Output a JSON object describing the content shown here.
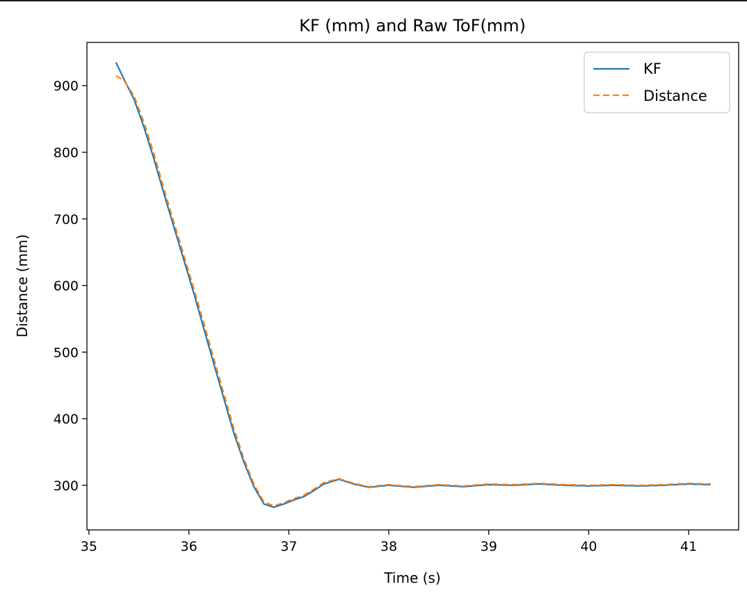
{
  "chart_data": {
    "type": "line",
    "title": "KF (mm) and Raw ToF(mm)",
    "xlabel": "Time (s)",
    "ylabel": "Distance (mm)",
    "xlim": [
      34.98,
      41.5
    ],
    "ylim": [
      233,
      965
    ],
    "xticks": [
      35,
      36,
      37,
      38,
      39,
      40,
      41
    ],
    "yticks": [
      300,
      400,
      500,
      600,
      700,
      800,
      900
    ],
    "grid": false,
    "legend_position": "top-right",
    "series": [
      {
        "name": "KF",
        "color": "#1f77b4",
        "style": "solid",
        "x": [
          35.27,
          35.35,
          35.45,
          35.55,
          35.65,
          35.75,
          35.85,
          35.95,
          36.05,
          36.15,
          36.25,
          36.35,
          36.45,
          36.55,
          36.65,
          36.75,
          36.85,
          36.95,
          37.05,
          37.15,
          37.25,
          37.35,
          37.5,
          37.65,
          37.8,
          38.0,
          38.25,
          38.5,
          38.75,
          39.0,
          39.25,
          39.5,
          39.75,
          40.0,
          40.25,
          40.5,
          40.75,
          41.0,
          41.22
        ],
        "y": [
          935,
          910,
          880,
          838,
          790,
          738,
          688,
          638,
          588,
          535,
          482,
          430,
          378,
          335,
          298,
          272,
          267,
          272,
          278,
          283,
          292,
          302,
          309,
          302,
          297,
          300,
          297,
          300,
          298,
          301,
          300,
          302,
          300,
          299,
          300,
          299,
          300,
          302,
          301
        ]
      },
      {
        "name": "Distance",
        "color": "#ff7f0e",
        "style": "dashed",
        "x": [
          35.27,
          35.35,
          35.45,
          35.55,
          35.65,
          35.75,
          35.85,
          35.95,
          36.05,
          36.15,
          36.25,
          36.35,
          36.45,
          36.55,
          36.65,
          36.75,
          36.85,
          36.95,
          37.05,
          37.15,
          37.25,
          37.35,
          37.5,
          37.65,
          37.8,
          38.0,
          38.25,
          38.5,
          38.75,
          39.0,
          39.25,
          39.5,
          39.75,
          40.0,
          40.25,
          40.5,
          40.75,
          41.0,
          41.22
        ],
        "y": [
          915,
          908,
          885,
          845,
          798,
          745,
          695,
          645,
          595,
          543,
          490,
          437,
          385,
          340,
          302,
          275,
          269,
          274,
          280,
          285,
          294,
          304,
          310,
          303,
          298,
          301,
          298,
          301,
          299,
          302,
          301,
          303,
          301,
          300,
          301,
          300,
          301,
          303,
          302
        ]
      }
    ]
  }
}
